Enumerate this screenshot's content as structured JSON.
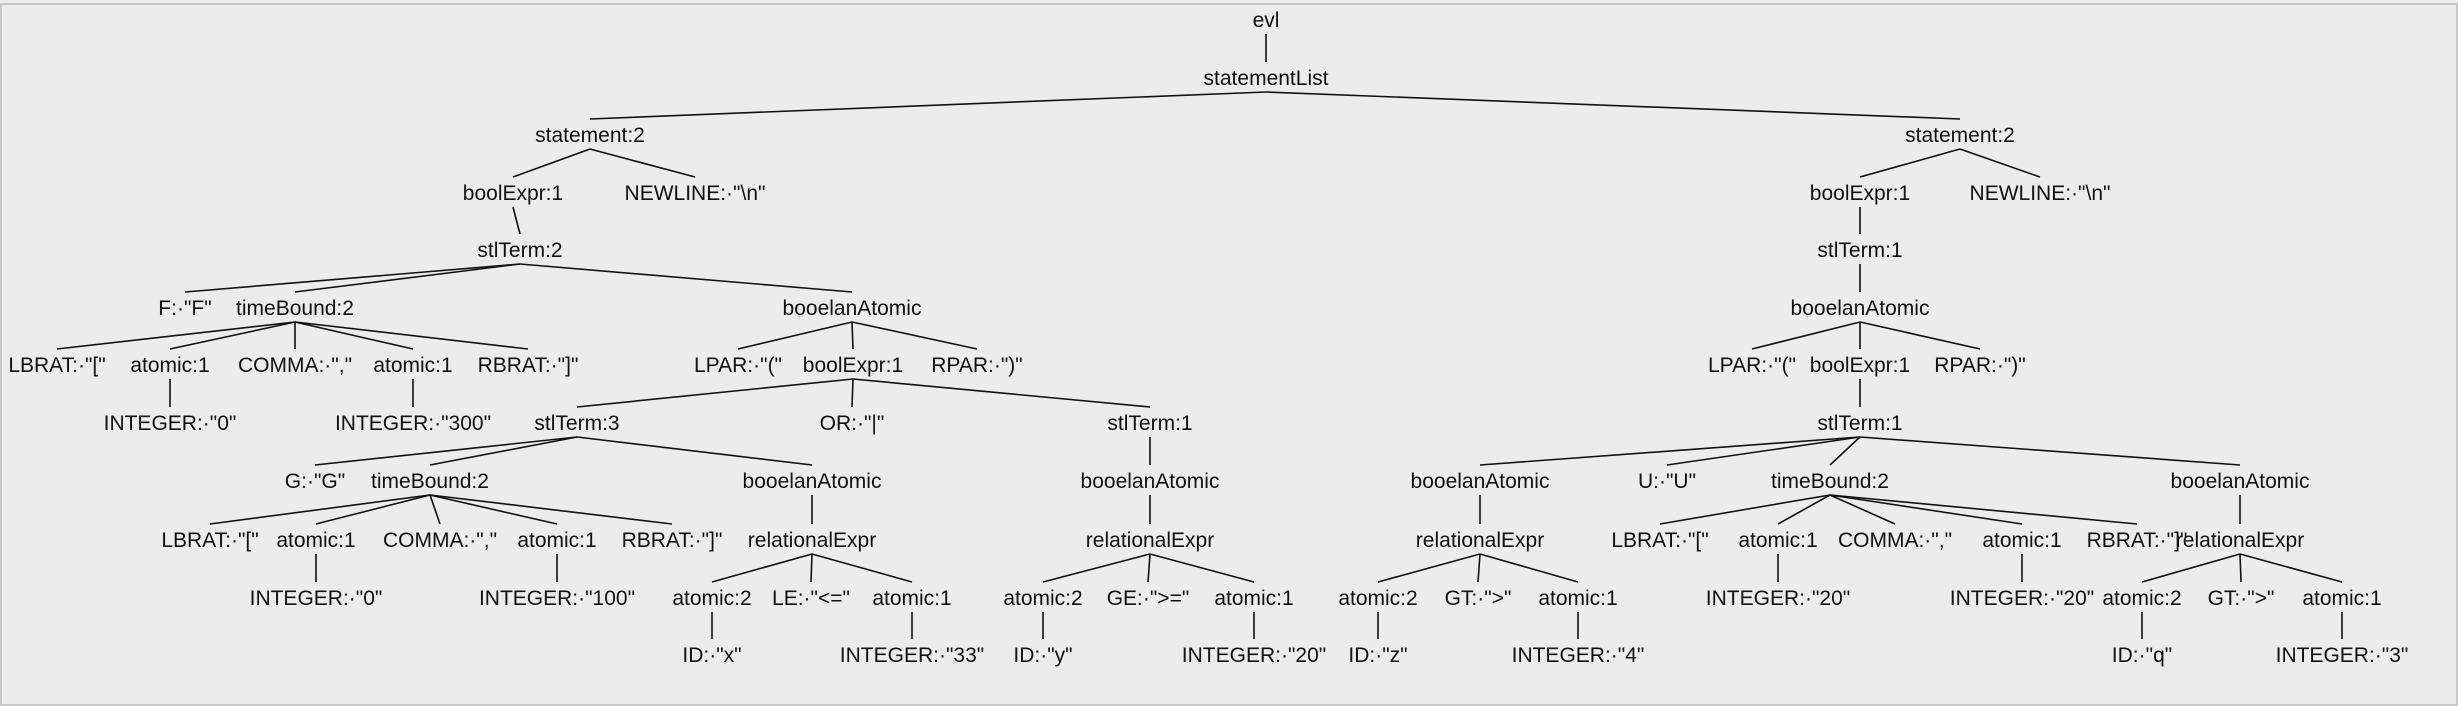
{
  "tree": {
    "nodes": [
      {
        "id": 0,
        "label": "evl",
        "parent": null
      },
      {
        "id": 1,
        "label": "statementList",
        "parent": 0
      },
      {
        "id": 2,
        "label": "statement:2",
        "parent": 1
      },
      {
        "id": 3,
        "label": "statement:2",
        "parent": 1
      },
      {
        "id": 4,
        "label": "boolExpr:1",
        "parent": 2
      },
      {
        "id": 5,
        "label": "NEWLINE:·\"\\n\"",
        "parent": 2
      },
      {
        "id": 6,
        "label": "stlTerm:2",
        "parent": 4
      },
      {
        "id": 7,
        "label": "F:·\"F\"",
        "parent": 6
      },
      {
        "id": 8,
        "label": "timeBound:2",
        "parent": 6
      },
      {
        "id": 9,
        "label": "booelanAtomic",
        "parent": 6
      },
      {
        "id": 10,
        "label": "LBRAT:·\"[\"",
        "parent": 8
      },
      {
        "id": 11,
        "label": "atomic:1",
        "parent": 8
      },
      {
        "id": 12,
        "label": "COMMA:·\",\"",
        "parent": 8
      },
      {
        "id": 13,
        "label": "atomic:1",
        "parent": 8
      },
      {
        "id": 14,
        "label": "RBRAT:·\"]\"",
        "parent": 8
      },
      {
        "id": 15,
        "label": "INTEGER:·\"0\"",
        "parent": 11
      },
      {
        "id": 16,
        "label": "INTEGER:·\"300\"",
        "parent": 13
      },
      {
        "id": 17,
        "label": "LPAR:·\"(\"",
        "parent": 9
      },
      {
        "id": 18,
        "label": "boolExpr:1",
        "parent": 9
      },
      {
        "id": 19,
        "label": "RPAR:·\")\"",
        "parent": 9
      },
      {
        "id": 20,
        "label": "stlTerm:3",
        "parent": 18
      },
      {
        "id": 21,
        "label": "OR:·\"|\"",
        "parent": 18
      },
      {
        "id": 22,
        "label": "stlTerm:1",
        "parent": 18
      },
      {
        "id": 23,
        "label": "G:·\"G\"",
        "parent": 20
      },
      {
        "id": 24,
        "label": "timeBound:2",
        "parent": 20
      },
      {
        "id": 25,
        "label": "booelanAtomic",
        "parent": 20
      },
      {
        "id": 26,
        "label": "LBRAT:·\"[\"",
        "parent": 24
      },
      {
        "id": 27,
        "label": "atomic:1",
        "parent": 24
      },
      {
        "id": 28,
        "label": "COMMA:·\",\"",
        "parent": 24
      },
      {
        "id": 29,
        "label": "atomic:1",
        "parent": 24
      },
      {
        "id": 30,
        "label": "RBRAT:·\"]\"",
        "parent": 24
      },
      {
        "id": 31,
        "label": "INTEGER:·\"0\"",
        "parent": 27
      },
      {
        "id": 32,
        "label": "INTEGER:·\"100\"",
        "parent": 29
      },
      {
        "id": 33,
        "label": "relationalExpr",
        "parent": 25
      },
      {
        "id": 34,
        "label": "atomic:2",
        "parent": 33
      },
      {
        "id": 35,
        "label": "LE:·\"<=\"",
        "parent": 33
      },
      {
        "id": 36,
        "label": "atomic:1",
        "parent": 33
      },
      {
        "id": 37,
        "label": "ID:·\"x\"",
        "parent": 34
      },
      {
        "id": 38,
        "label": "INTEGER:·\"33\"",
        "parent": 36
      },
      {
        "id": 39,
        "label": "booelanAtomic",
        "parent": 22
      },
      {
        "id": 40,
        "label": "relationalExpr",
        "parent": 39
      },
      {
        "id": 41,
        "label": "atomic:2",
        "parent": 40
      },
      {
        "id": 42,
        "label": "GE:·\">=\"",
        "parent": 40
      },
      {
        "id": 43,
        "label": "atomic:1",
        "parent": 40
      },
      {
        "id": 44,
        "label": "ID:·\"y\"",
        "parent": 41
      },
      {
        "id": 45,
        "label": "INTEGER:·\"20\"",
        "parent": 43
      },
      {
        "id": 46,
        "label": "boolExpr:1",
        "parent": 3
      },
      {
        "id": 47,
        "label": "NEWLINE:·\"\\n\"",
        "parent": 3
      },
      {
        "id": 48,
        "label": "stlTerm:1",
        "parent": 46
      },
      {
        "id": 49,
        "label": "booelanAtomic",
        "parent": 48
      },
      {
        "id": 50,
        "label": "LPAR:·\"(\"",
        "parent": 49
      },
      {
        "id": 51,
        "label": "boolExpr:1",
        "parent": 49
      },
      {
        "id": 52,
        "label": "RPAR:·\")\"",
        "parent": 49
      },
      {
        "id": 53,
        "label": "stlTerm:1",
        "parent": 51
      },
      {
        "id": 54,
        "label": "booelanAtomic",
        "parent": 53
      },
      {
        "id": 55,
        "label": "U:·\"U\"",
        "parent": 53
      },
      {
        "id": 56,
        "label": "timeBound:2",
        "parent": 53
      },
      {
        "id": 57,
        "label": "booelanAtomic",
        "parent": 53
      },
      {
        "id": 58,
        "label": "relationalExpr",
        "parent": 54
      },
      {
        "id": 59,
        "label": "atomic:2",
        "parent": 58
      },
      {
        "id": 60,
        "label": "GT:·\">\"",
        "parent": 58
      },
      {
        "id": 61,
        "label": "atomic:1",
        "parent": 58
      },
      {
        "id": 62,
        "label": "ID:·\"z\"",
        "parent": 59
      },
      {
        "id": 63,
        "label": "INTEGER:·\"4\"",
        "parent": 61
      },
      {
        "id": 64,
        "label": "LBRAT:·\"[\"",
        "parent": 56
      },
      {
        "id": 65,
        "label": "atomic:1",
        "parent": 56
      },
      {
        "id": 66,
        "label": "COMMA:·\",\"",
        "parent": 56
      },
      {
        "id": 67,
        "label": "atomic:1",
        "parent": 56
      },
      {
        "id": 68,
        "label": "RBRAT:·\"]\"",
        "parent": 56
      },
      {
        "id": 69,
        "label": "INTEGER:·\"20\"",
        "parent": 65
      },
      {
        "id": 70,
        "label": "INTEGER:·\"20\"",
        "parent": 67
      },
      {
        "id": 71,
        "label": "relationalExpr",
        "parent": 57
      },
      {
        "id": 72,
        "label": "atomic:2",
        "parent": 71
      },
      {
        "id": 73,
        "label": "GT:·\">\"",
        "parent": 71
      },
      {
        "id": 74,
        "label": "atomic:1",
        "parent": 71
      },
      {
        "id": 75,
        "label": "ID:·\"q\"",
        "parent": 72
      },
      {
        "id": 76,
        "label": "INTEGER:·\"3\"",
        "parent": 74
      }
    ]
  }
}
